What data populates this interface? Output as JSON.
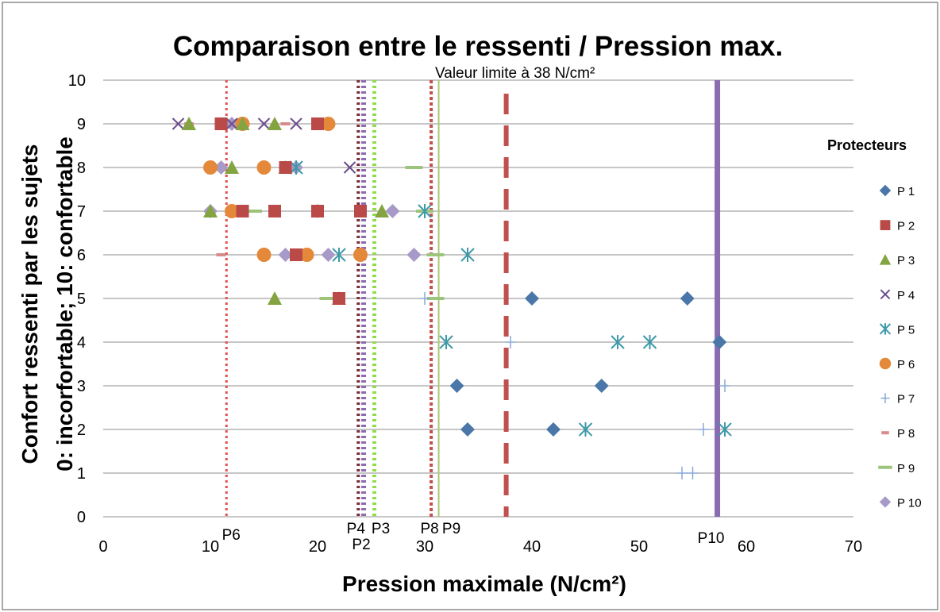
{
  "chart_data": {
    "type": "scatter",
    "title": "Comparaison entre le ressenti / Pression max.",
    "xlabel": "Pression maximale (N/cm²)",
    "ylabel_line1": "Confort ressenti par les sujets",
    "ylabel_line2": "0: incorfortable; 10: confortable",
    "xlim": [
      0,
      70
    ],
    "ylim": [
      0,
      10
    ],
    "x_ticks": [
      0,
      10,
      20,
      30,
      40,
      50,
      60,
      70
    ],
    "y_ticks": [
      0,
      1,
      2,
      3,
      4,
      5,
      6,
      7,
      8,
      9,
      10
    ],
    "grid": "horizontal",
    "legend_title": "Protecteurs",
    "legend_position": "right",
    "limit_label": "Valeur limite à 38 N/cm²",
    "series": [
      {
        "name": "P 1",
        "marker": "diamond",
        "color": "#4a76a8",
        "points": [
          [
            40,
            5
          ],
          [
            54.5,
            5
          ],
          [
            57.5,
            4
          ],
          [
            33,
            3
          ],
          [
            46.5,
            3
          ],
          [
            34,
            2
          ],
          [
            42,
            2
          ]
        ]
      },
      {
        "name": "P 2",
        "marker": "square",
        "color": "#b94a48",
        "points": [
          [
            11,
            9
          ],
          [
            20,
            9
          ],
          [
            13,
            7
          ],
          [
            16,
            7
          ],
          [
            20,
            7
          ],
          [
            24,
            7
          ],
          [
            18,
            6
          ],
          [
            22,
            5
          ],
          [
            17,
            8
          ]
        ]
      },
      {
        "name": "P 3",
        "marker": "triangle",
        "color": "#84a442",
        "points": [
          [
            8,
            9
          ],
          [
            13,
            9
          ],
          [
            16,
            9
          ],
          [
            12,
            8
          ],
          [
            17,
            8
          ],
          [
            10,
            7
          ],
          [
            26,
            7
          ],
          [
            16,
            5
          ],
          [
            22,
            5
          ]
        ]
      },
      {
        "name": "P 4",
        "marker": "x",
        "color": "#6b4e8c",
        "points": [
          [
            7,
            9
          ],
          [
            12,
            9
          ],
          [
            15,
            9
          ],
          [
            18,
            9
          ],
          [
            20,
            7
          ],
          [
            23,
            8
          ]
        ]
      },
      {
        "name": "P 5",
        "marker": "star",
        "color": "#3d9aaa",
        "points": [
          [
            18,
            8
          ],
          [
            30,
            7
          ],
          [
            22,
            6
          ],
          [
            34,
            6
          ],
          [
            32,
            4
          ],
          [
            48,
            4
          ],
          [
            51,
            4
          ],
          [
            45,
            2
          ],
          [
            58,
            2
          ]
        ]
      },
      {
        "name": "P 6",
        "marker": "circle",
        "color": "#e4883a",
        "points": [
          [
            13,
            9
          ],
          [
            21,
            9
          ],
          [
            10,
            8
          ],
          [
            15,
            8
          ],
          [
            12,
            7
          ],
          [
            15,
            6
          ],
          [
            19,
            6
          ],
          [
            24,
            6
          ]
        ]
      },
      {
        "name": "P 7",
        "marker": "plus",
        "color": "#8aa8d8",
        "points": [
          [
            30,
            5
          ],
          [
            38,
            4
          ],
          [
            58,
            3
          ],
          [
            56,
            2
          ],
          [
            54,
            1
          ],
          [
            55,
            1
          ]
        ]
      },
      {
        "name": "P 8",
        "marker": "dash",
        "color": "#d98b8b",
        "points": [
          [
            8,
            9
          ],
          [
            11,
            6
          ],
          [
            17,
            9
          ]
        ]
      },
      {
        "name": "P 9",
        "marker": "line",
        "color": "#9cc57b",
        "points": [
          [
            14,
            7
          ],
          [
            29,
            8
          ],
          [
            30,
            7
          ],
          [
            31,
            6
          ],
          [
            21,
            5
          ],
          [
            31,
            5
          ]
        ]
      },
      {
        "name": "P 10",
        "marker": "diamond",
        "color": "#a89ac8",
        "points": [
          [
            12,
            9
          ],
          [
            11,
            8
          ],
          [
            18,
            8
          ],
          [
            10,
            7
          ],
          [
            20,
            7
          ],
          [
            27,
            7
          ],
          [
            17,
            6
          ],
          [
            21,
            6
          ],
          [
            29,
            6
          ]
        ]
      }
    ],
    "vlines": [
      {
        "label": "P6",
        "x": 11.5,
        "color": "#e05050",
        "style": "dotted",
        "width": 3
      },
      {
        "label": "P4",
        "x": 23.8,
        "color": "#7a2c3c",
        "style": "dotted",
        "width": 4
      },
      {
        "label": "P2",
        "x": 24.3,
        "color": "#8a6cb0",
        "style": "dotted",
        "width": 6
      },
      {
        "label": "P3",
        "x": 25.3,
        "color": "#8fdc4a",
        "style": "dotted",
        "width": 5
      },
      {
        "label": "P8",
        "x": 30.6,
        "color": "#c0504d",
        "style": "dotted-dash",
        "width": 4
      },
      {
        "label": "P9",
        "x": 31.3,
        "color": "#a8c878",
        "style": "solid",
        "width": 2
      },
      {
        "label": "",
        "x": 37.6,
        "color": "#c0504d",
        "style": "long-dash",
        "width": 6
      },
      {
        "label": "P10",
        "x": 57.3,
        "color": "#8a6cb0",
        "style": "solid",
        "width": 7
      }
    ]
  }
}
